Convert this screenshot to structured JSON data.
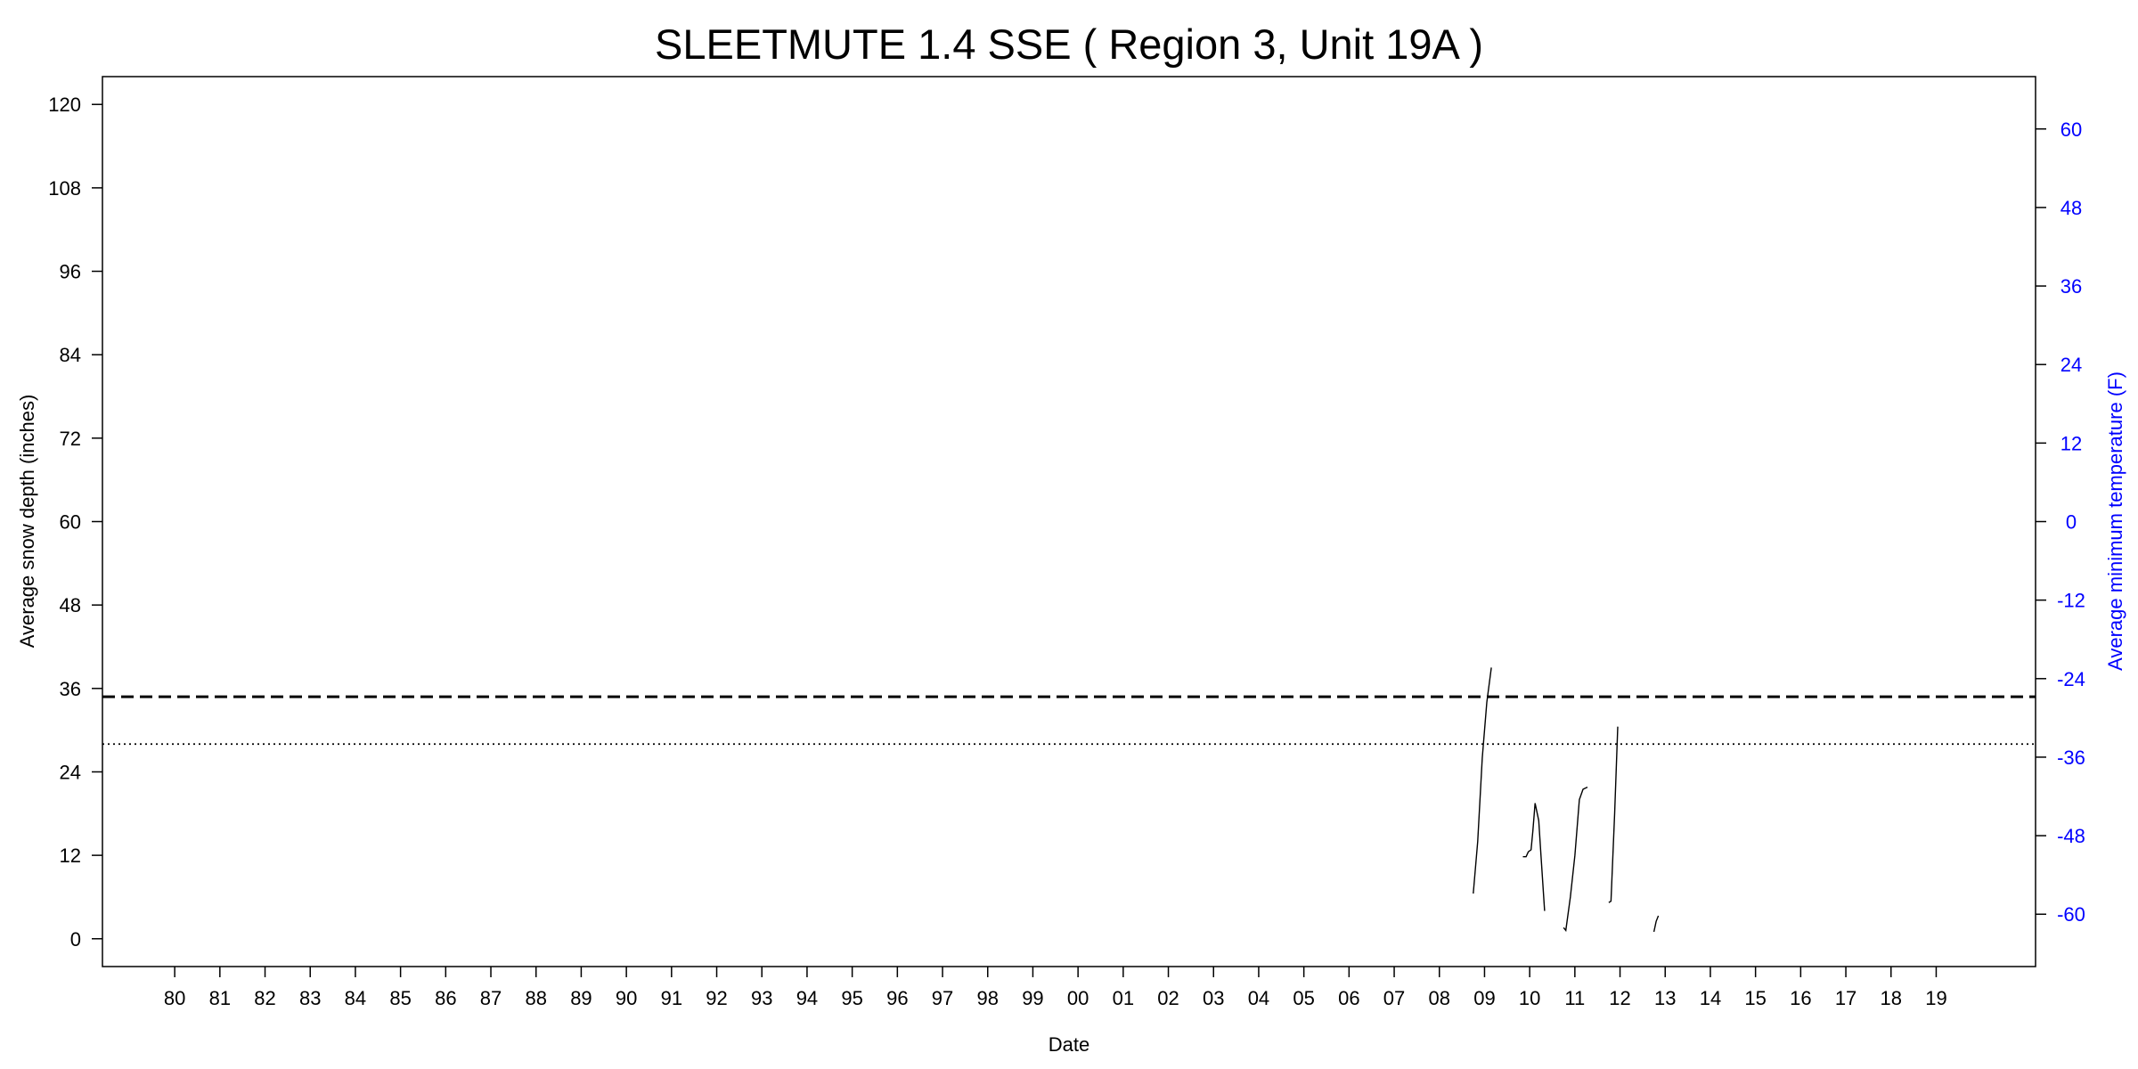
{
  "chart_data": {
    "type": "line",
    "title": "SLEETMUTE 1.4 SSE ( Region 3, Unit 19A )",
    "xlabel": "Date",
    "ylabel": "Average snow depth (inches)",
    "ylabel_right": "Average minimum temperature (F)",
    "ylim": [
      -4,
      124
    ],
    "y_ticks": [
      0,
      12,
      24,
      36,
      48,
      60,
      72,
      84,
      96,
      108,
      120
    ],
    "y2lim": [
      -68,
      68
    ],
    "y2_ticks": [
      -60,
      -48,
      -36,
      -24,
      -12,
      0,
      12,
      24,
      36,
      48,
      60
    ],
    "xlim": [
      1978.4,
      2021.2
    ],
    "x_ticks": [
      "80",
      "81",
      "82",
      "83",
      "84",
      "85",
      "86",
      "87",
      "88",
      "89",
      "90",
      "91",
      "92",
      "93",
      "94",
      "95",
      "96",
      "97",
      "98",
      "99",
      "00",
      "01",
      "02",
      "03",
      "04",
      "05",
      "06",
      "07",
      "08",
      "09",
      "10",
      "11",
      "12",
      "13",
      "14",
      "15",
      "16",
      "17",
      "18",
      "19"
    ],
    "x_tick_positions": [
      1980,
      1981,
      1982,
      1983,
      1984,
      1985,
      1986,
      1987,
      1988,
      1989,
      1990,
      1991,
      1992,
      1993,
      1994,
      1995,
      1996,
      1997,
      1998,
      1999,
      2000,
      2001,
      2002,
      2003,
      2004,
      2005,
      2006,
      2007,
      2008,
      2009,
      2010,
      2011,
      2012,
      2013,
      2014,
      2015,
      2016,
      2017,
      2018,
      2019
    ],
    "reference_lines": [
      {
        "style": "dashed",
        "y": 34.8
      },
      {
        "style": "dotted",
        "y": 28
      }
    ],
    "grid": false,
    "colors": {
      "right_axis": "#0000ff",
      "series": "#000000"
    },
    "series": [
      {
        "values": [
          [
            2008.75,
            6.5
          ],
          [
            2008.85,
            14
          ],
          [
            2008.95,
            26
          ],
          [
            2009.05,
            34
          ],
          [
            2009.15,
            39
          ]
        ]
      },
      {
        "values": [
          [
            2009.85,
            11.8
          ],
          [
            2009.92,
            11.8
          ],
          [
            2009.97,
            12.5
          ],
          [
            2010.03,
            12.8
          ],
          [
            2010.07,
            15.5
          ],
          [
            2010.12,
            19.5
          ],
          [
            2010.2,
            17
          ],
          [
            2010.25,
            12
          ],
          [
            2010.33,
            4
          ]
        ]
      },
      {
        "values": [
          [
            2010.75,
            1.6
          ],
          [
            2010.8,
            1.2
          ],
          [
            2010.9,
            6
          ],
          [
            2011.0,
            12
          ],
          [
            2011.1,
            20
          ],
          [
            2011.18,
            21.5
          ],
          [
            2011.28,
            21.8
          ]
        ]
      },
      {
        "values": [
          [
            2011.75,
            5.2
          ],
          [
            2011.8,
            5.4
          ],
          [
            2011.88,
            18
          ],
          [
            2011.95,
            30.5
          ]
        ]
      },
      {
        "values": [
          [
            2012.75,
            1
          ],
          [
            2012.8,
            2.5
          ],
          [
            2012.85,
            3.3
          ]
        ]
      }
    ]
  }
}
